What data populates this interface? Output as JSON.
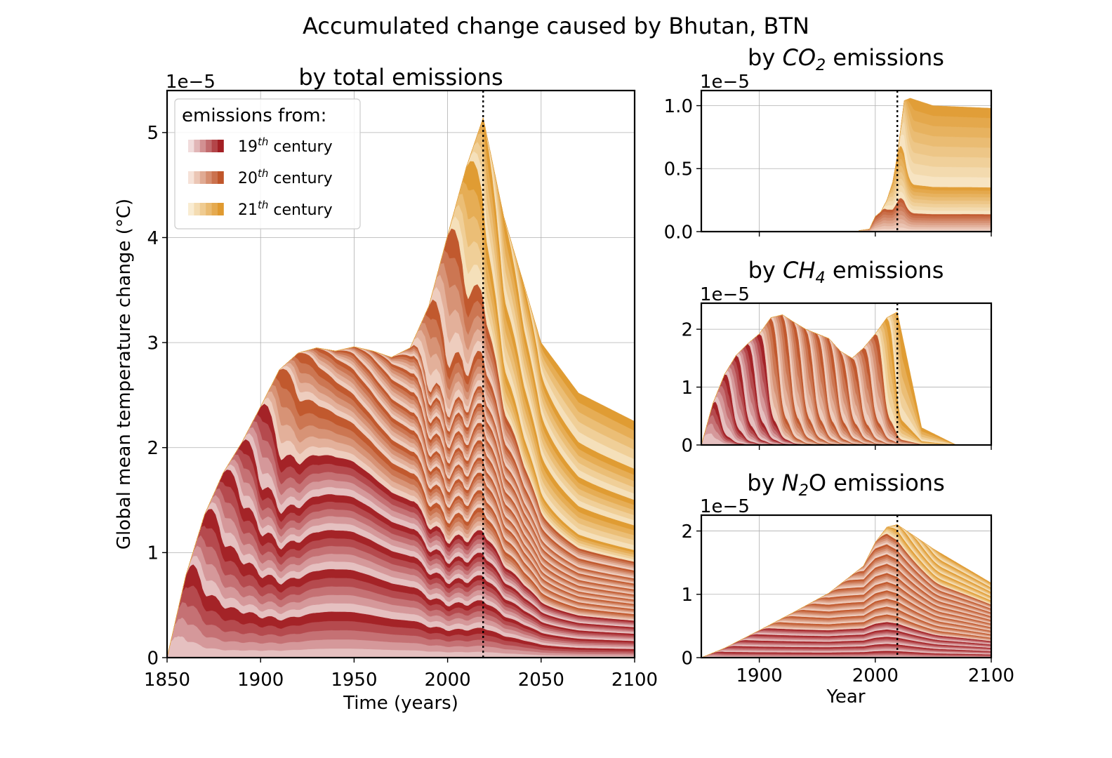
{
  "figure": {
    "suptitle": "Accumulated change caused by Bhutan, BTN",
    "reference_year": 2019,
    "colors": {
      "c19": [
        "#f1dcdc",
        "#a31f24"
      ],
      "c20": [
        "#f6e2d8",
        "#c0562b"
      ],
      "c21": [
        "#f9ecd2",
        "#e09a30"
      ]
    },
    "legend": {
      "title": "emissions from:",
      "entries": [
        {
          "num": "19",
          "sup": "th",
          "text": " century"
        },
        {
          "num": "20",
          "sup": "th",
          "text": " century"
        },
        {
          "num": "21",
          "sup": "th",
          "text": " century"
        }
      ]
    }
  },
  "chart_data": [
    {
      "id": "total",
      "type": "area",
      "stacked": true,
      "title": "by total emissions",
      "xlabel": "Time (years)",
      "ylabel": "Global mean temperature change (°C)",
      "offset_label": "1e−5",
      "xlim": [
        1850,
        2100
      ],
      "ylim": [
        0,
        5.4
      ],
      "xticks": [
        1850,
        1900,
        1950,
        2000,
        2050,
        2100
      ],
      "xtick_labels": [
        "1850",
        "1900",
        "1950",
        "2000",
        "2050",
        "2100"
      ],
      "yticks": [
        0,
        1,
        2,
        3,
        4,
        5
      ],
      "ytick_labels": [
        "0",
        "1",
        "2",
        "3",
        "4",
        "5"
      ],
      "grid": true,
      "legend_position": "top-left",
      "cumulative_envelope": {
        "x": [
          1850,
          1860,
          1870,
          1880,
          1890,
          1900,
          1910,
          1920,
          1930,
          1940,
          1950,
          1960,
          1970,
          1980,
          1990,
          2000,
          2010,
          2019,
          2030,
          2050,
          2070,
          2100
        ],
        "y": [
          0,
          0.78,
          1.36,
          1.76,
          2.05,
          2.39,
          2.74,
          2.9,
          2.95,
          2.92,
          2.96,
          2.92,
          2.86,
          2.95,
          3.35,
          4.02,
          4.67,
          5.14,
          4.2,
          3.0,
          2.52,
          2.25
        ]
      },
      "decade_peaks": [
        0.78,
        0.58,
        0.4,
        0.29,
        0.34,
        0.35,
        0.16,
        0.05,
        0.02,
        0.02,
        0.02,
        0.02,
        0.03,
        0.39,
        0.67,
        0.65,
        0.47,
        0.47
      ],
      "end_values": [
        0.12,
        0.11,
        0.1,
        0.09,
        0.09,
        0.09,
        0.07,
        0.07,
        0.06,
        0.07,
        0.07,
        0.08,
        0.07,
        0.11,
        0.12,
        0.16,
        0.34,
        0.35,
        0.43,
        0.66
      ],
      "final_values": {
        "x": 2100,
        "y": 2.25
      }
    },
    {
      "id": "co2",
      "type": "area",
      "stacked": true,
      "title_prefix": "by ",
      "title_chem": "CO",
      "title_sub": "2",
      "title_suffix": " emissions",
      "offset_label": "1e−5",
      "xlim": [
        1850,
        2100
      ],
      "ylim": [
        0,
        1.12
      ],
      "xticks": [
        1900,
        2000,
        2100
      ],
      "xtick_labels": [],
      "yticks": [
        0,
        0.5,
        1.0
      ],
      "ytick_labels": [
        "0.0",
        "0.5",
        "1.0"
      ],
      "grid": true,
      "cumulative_envelope": {
        "x": [
          1850,
          1980,
          1995,
          2000,
          2005,
          2010,
          2015,
          2019,
          2025,
          2030,
          2050,
          2100
        ],
        "y": [
          0,
          0,
          0.02,
          0.12,
          0.16,
          0.25,
          0.39,
          0.6,
          1.04,
          1.06,
          1.0,
          0.98
        ]
      },
      "levels": [
        0.15,
        0.38,
        1.06
      ]
    },
    {
      "id": "ch4",
      "type": "area",
      "stacked": true,
      "title_prefix": "by ",
      "title_chem": "CH",
      "title_sub": "4",
      "title_suffix": " emissions",
      "offset_label": "1e−5",
      "xlim": [
        1850,
        2100
      ],
      "ylim": [
        0,
        2.45
      ],
      "xticks": [
        1900,
        2000,
        2100
      ],
      "xtick_labels": [],
      "yticks": [
        0,
        1,
        2
      ],
      "ytick_labels": [
        "0",
        "1",
        "2"
      ],
      "grid": true,
      "decade_peaks": [
        0.72,
        1.22,
        1.55,
        1.75,
        1.92,
        2.2,
        2.25,
        2.12,
        2.0,
        1.92,
        1.84,
        1.62,
        1.5,
        1.68,
        1.92,
        2.2,
        2.3
      ],
      "cumulative_envelope": {
        "x": [
          1850,
          1860,
          1870,
          1880,
          1890,
          1900,
          1910,
          1920,
          1930,
          1940,
          1950,
          1960,
          1970,
          1980,
          1990,
          2000,
          2010,
          2019,
          2040,
          2070,
          2100
        ],
        "y": [
          0,
          0.72,
          1.22,
          1.55,
          1.75,
          1.92,
          2.2,
          2.25,
          2.12,
          2.0,
          1.92,
          1.84,
          1.62,
          1.5,
          1.68,
          1.92,
          2.2,
          2.3,
          0.3,
          0,
          0
        ]
      }
    },
    {
      "id": "n2o",
      "type": "area",
      "stacked": true,
      "title_prefix": "by ",
      "title_chem": "N",
      "title_sub": "2",
      "title_suffix": "O emissions",
      "offset_label": "1e−5",
      "xlabel": "Year",
      "xlim": [
        1850,
        2100
      ],
      "ylim": [
        0,
        2.25
      ],
      "xticks": [
        1900,
        2000,
        2100
      ],
      "xtick_labels": [
        "1900",
        "2000",
        "2100"
      ],
      "yticks": [
        0,
        1,
        2
      ],
      "ytick_labels": [
        "0",
        "1",
        "2"
      ],
      "grid": true,
      "cumulative_envelope": {
        "x": [
          1850,
          1870,
          1900,
          1930,
          1960,
          1990,
          2000,
          2010,
          2019,
          2050,
          2100
        ],
        "y": [
          0,
          0.15,
          0.43,
          0.72,
          1.02,
          1.45,
          1.82,
          2.06,
          2.1,
          1.72,
          1.18
        ]
      }
    }
  ]
}
